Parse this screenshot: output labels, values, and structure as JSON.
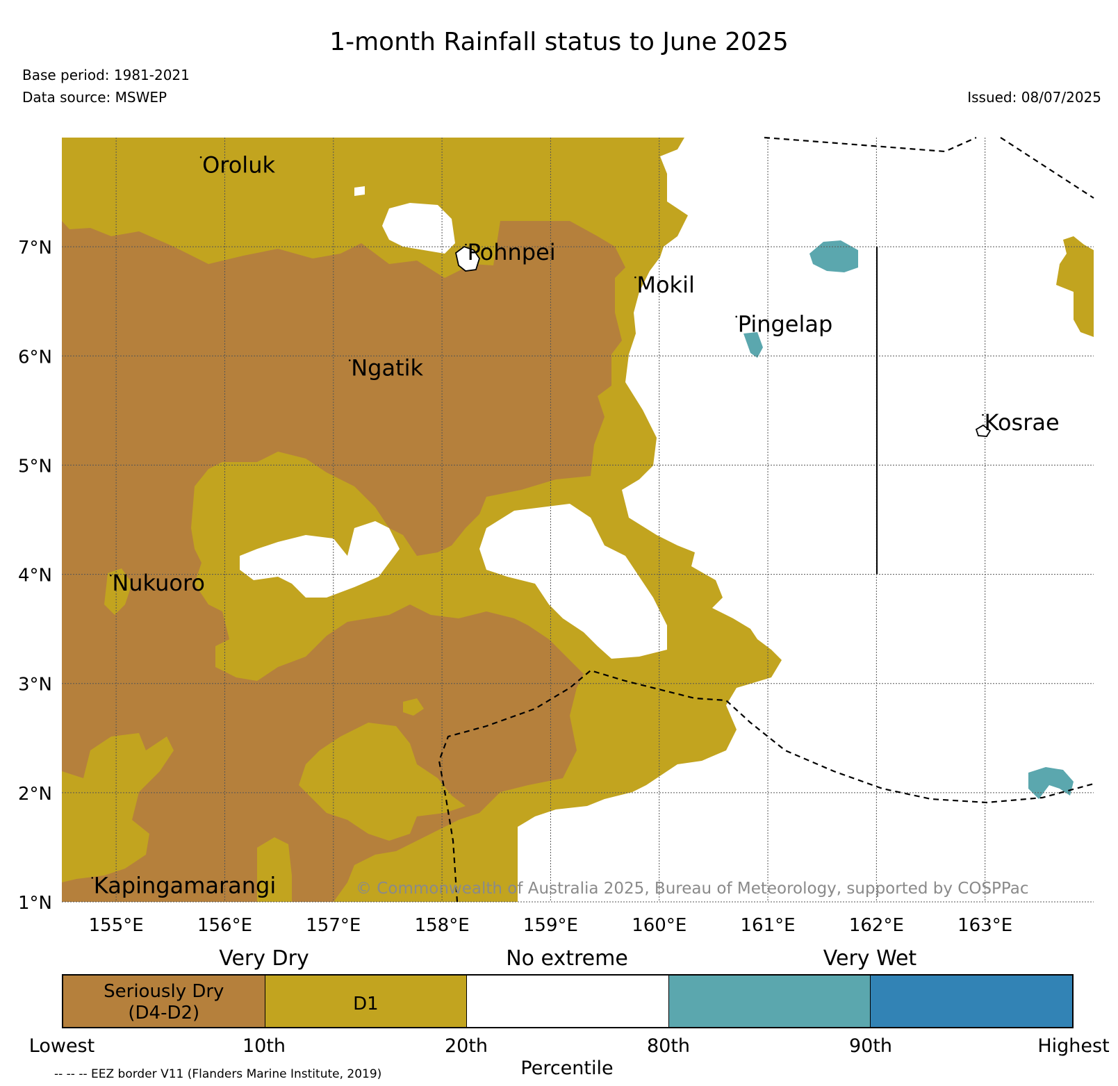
{
  "title": "1-month Rainfall status to June 2025",
  "base_period": "Base period: 1981-2021",
  "data_source": "Data source: MSWEP",
  "issued": "Issued: 08/07/2025",
  "copyright": "© Commonwealth of Australia 2025, Bureau of Meteorology, supported by COSPPac",
  "map": {
    "lon_range": [
      154.5,
      164.0
    ],
    "lat_range": [
      1.0,
      8.0
    ],
    "lon_ticks": [
      "155°E",
      "156°E",
      "157°E",
      "158°E",
      "159°E",
      "160°E",
      "161°E",
      "162°E",
      "163°E"
    ],
    "lat_ticks": [
      "1°N",
      "2°N",
      "3°N",
      "4°N",
      "5°N",
      "6°N",
      "7°N"
    ],
    "places": [
      {
        "name": "Oroluk",
        "lon": 155.78,
        "lat": 7.68
      },
      {
        "name": "Pohnpei",
        "lon": 158.22,
        "lat": 6.88
      },
      {
        "name": "Mokil",
        "lon": 159.78,
        "lat": 6.58
      },
      {
        "name": "Pingelap",
        "lon": 160.71,
        "lat": 6.22
      },
      {
        "name": "Ngatik",
        "lon": 157.15,
        "lat": 5.82
      },
      {
        "name": "Kosrae",
        "lon": 162.98,
        "lat": 5.32
      },
      {
        "name": "Nukuoro",
        "lon": 154.95,
        "lat": 3.85
      },
      {
        "name": "Kapingamarangi",
        "lon": 154.78,
        "lat": 1.08
      }
    ]
  },
  "legend": {
    "groups": [
      "Very Dry",
      "No extreme",
      "Very Wet"
    ],
    "segments": [
      {
        "label": "Seriously Dry\n(D4-D2)",
        "color": "#b5803c"
      },
      {
        "label": "D1",
        "color": "#c2a41f"
      },
      {
        "label": "",
        "color": "#ffffff"
      },
      {
        "label": "",
        "color": "#5ba7ae"
      },
      {
        "label": "",
        "color": "#3283b5"
      }
    ],
    "ticks": [
      "Lowest",
      "10th",
      "20th",
      "80th",
      "90th",
      "Highest"
    ],
    "xlabel": "Percentile",
    "eez_note": "-- -- -- EEZ border V11 (Flanders Marine Institute, 2019)"
  },
  "colors": {
    "seriously_dry": "#b5803c",
    "d1": "#c2a41f",
    "very_wet": "#5ba7ae",
    "highest": "#3283b5"
  }
}
